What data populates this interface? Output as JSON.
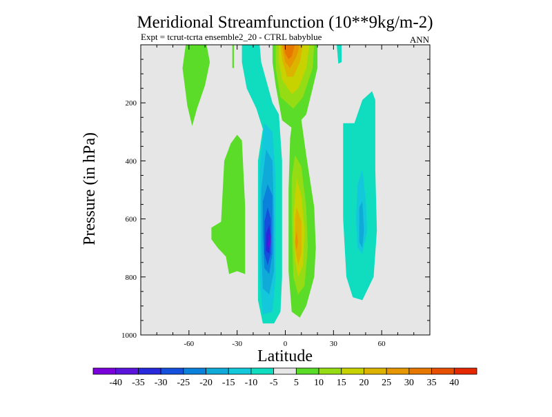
{
  "chart_data": {
    "type": "contour",
    "title": "Meridional Streamfunction (10**9kg/m-2)",
    "subtitle_left": "Expt = tcrut-tcrta   ensemble2_20 - CTRL babyblue",
    "subtitle_right": "ANN",
    "xlabel": "Latitude",
    "ylabel": "Pressure (in hPa)",
    "xlim": [
      -90,
      90
    ],
    "ylim": [
      1000,
      0
    ],
    "x_ticks": [
      {
        "value": -60,
        "label": "-60"
      },
      {
        "value": -30,
        "label": "-30"
      },
      {
        "value": 0,
        "label": "0"
      },
      {
        "value": 30,
        "label": "30"
      },
      {
        "value": 60,
        "label": "60"
      }
    ],
    "y_ticks": [
      {
        "value": 200,
        "label": "200"
      },
      {
        "value": 400,
        "label": "400"
      },
      {
        "value": 600,
        "label": "600"
      },
      {
        "value": 800,
        "label": "800"
      },
      {
        "value": 1000,
        "label": "1000"
      }
    ],
    "background_color": "#e6e6e6",
    "colorbar": {
      "colors": [
        "#7a00dc",
        "#5a14dc",
        "#2828dc",
        "#1450dc",
        "#0a82dc",
        "#10aad8",
        "#14c8dc",
        "#10dcc0",
        "#e6e6e6",
        "#5adc28",
        "#96dc14",
        "#c8d200",
        "#dcb400",
        "#e69600",
        "#e67800",
        "#e65000",
        "#e62800"
      ],
      "labels": [
        "-40",
        "-35",
        "-30",
        "-25",
        "-20",
        "-15",
        "-10",
        "-5",
        "5",
        "10",
        "15",
        "20",
        "25",
        "30",
        "35",
        "40"
      ]
    },
    "features": [
      {
        "name": "nh-tropical-negative-cell",
        "lat_range": [
          -20,
          -2
        ],
        "p_range": [
          0,
          960
        ],
        "min_value": -35,
        "min_at": [
          -10,
          670
        ]
      },
      {
        "name": "nh-tropical-positive-cell",
        "lat_range": [
          0,
          20
        ],
        "p_range": [
          240,
          950
        ],
        "max_value": 30,
        "max_at": [
          7,
          680
        ]
      },
      {
        "name": "upper-positive-cell",
        "lat_range": [
          -8,
          20
        ],
        "p_range": [
          0,
          290
        ],
        "max_value": 35,
        "max_at": [
          0,
          20
        ]
      },
      {
        "name": "sh-subtropical-negative-cell",
        "lat_range": [
          35,
          60
        ],
        "p_range": [
          160,
          880
        ],
        "min_value": -15,
        "min_at": [
          46,
          640
        ]
      },
      {
        "name": "positive-lobe-minus40",
        "lat_range": [
          -47,
          -25
        ],
        "p_range": [
          310,
          790
        ],
        "max_value": 10
      },
      {
        "name": "positive-lobe-upper-minus60",
        "lat_range": [
          -65,
          -45
        ],
        "p_range": [
          0,
          280
        ],
        "max_value": 10
      }
    ]
  }
}
